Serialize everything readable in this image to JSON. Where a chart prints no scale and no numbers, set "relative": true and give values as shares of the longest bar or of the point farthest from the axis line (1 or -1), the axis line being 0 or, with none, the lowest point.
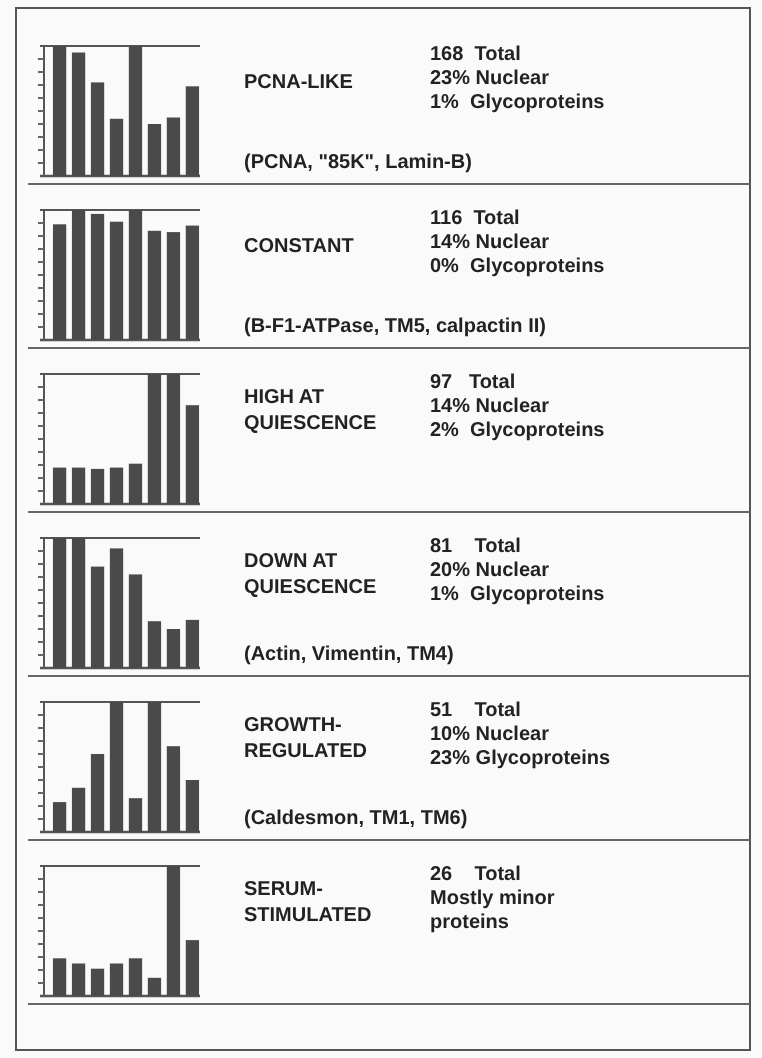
{
  "chart_data": [
    {
      "type": "bar",
      "relative": true,
      "categories": [
        null,
        null,
        null,
        null,
        null,
        null,
        null,
        null
      ],
      "values": [
        1,
        0.95,
        0.72,
        0.44,
        1,
        0.4,
        0.45,
        0.69
      ],
      "color": "#4a4a4a",
      "annotations": [
        "PCNA-LIKE",
        "168  Total",
        "23% Nuclear",
        "1%  Glycoproteins",
        "(PCNA, \"85K\", Lamin-B)"
      ]
    },
    {
      "type": "bar",
      "relative": true,
      "categories": [
        null,
        null,
        null,
        null,
        null,
        null,
        null,
        null
      ],
      "values": [
        0.89,
        1,
        0.97,
        0.91,
        1,
        0.84,
        0.83,
        0.88
      ],
      "color": "#4a4a4a",
      "annotations": [
        "CONSTANT",
        "116  Total",
        "14% Nuclear",
        "0%  Glycoproteins",
        "(B-F1-ATPase, TM5, calpactin II)"
      ]
    },
    {
      "type": "bar",
      "relative": true,
      "categories": [
        null,
        null,
        null,
        null,
        null,
        null,
        null,
        null
      ],
      "values": [
        0.28,
        0.28,
        0.27,
        0.28,
        0.31,
        1,
        1,
        0.76
      ],
      "color": "#4a4a4a",
      "annotations": [
        "HIGH AT\nQUIESCENCE",
        "97   Total",
        "14% Nuclear",
        "2%  Glycoproteins"
      ]
    },
    {
      "type": "bar",
      "relative": true,
      "categories": [
        null,
        null,
        null,
        null,
        null,
        null,
        null,
        null
      ],
      "values": [
        1,
        1,
        0.78,
        0.92,
        0.72,
        0.36,
        0.3,
        0.37
      ],
      "color": "#4a4a4a",
      "annotations": [
        "DOWN AT\nQUIESCENCE",
        "81    Total",
        "20% Nuclear",
        "1%  Glycoproteins",
        "(Actin, Vimentin, TM4)"
      ]
    },
    {
      "type": "bar",
      "relative": true,
      "categories": [
        null,
        null,
        null,
        null,
        null,
        null,
        null,
        null
      ],
      "values": [
        0.23,
        0.34,
        0.6,
        1,
        0.26,
        1,
        0.66,
        0.4
      ],
      "color": "#4a4a4a",
      "annotations": [
        "GROWTH-\nREGULATED",
        "51    Total",
        "10% Nuclear",
        "23% Glycoproteins",
        "(Caldesmon, TM1, TM6)"
      ]
    },
    {
      "type": "bar",
      "relative": true,
      "categories": [
        null,
        null,
        null,
        null,
        null,
        null,
        null,
        null
      ],
      "values": [
        0.29,
        0.25,
        0.21,
        0.25,
        0.29,
        0.14,
        1,
        0.43
      ],
      "color": "#4a4a4a",
      "annotations": [
        "SERUM-\nSTIMULATED",
        "26    Total",
        "Mostly minor\nproteins"
      ]
    }
  ]
}
